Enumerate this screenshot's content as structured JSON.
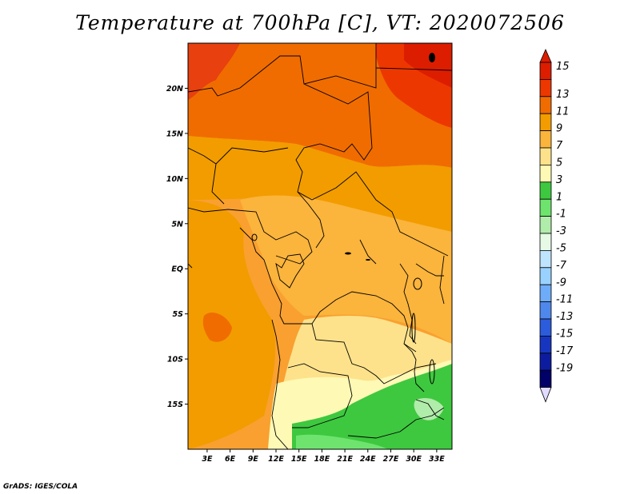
{
  "title": "Temperature at 700hPa [C], VT: 2020072506",
  "credit": "GrADS: IGES/COLA",
  "map": {
    "lon_ticks": [
      "3E",
      "6E",
      "9E",
      "12E",
      "15E",
      "18E",
      "21E",
      "24E",
      "27E",
      "30E",
      "33E"
    ],
    "lat_ticks": [
      "20N",
      "15N",
      "10N",
      "5N",
      "EQ",
      "5S",
      "10S",
      "15S"
    ],
    "lon_range": [
      0.5,
      35
    ],
    "lat_range": [
      -20,
      25
    ],
    "region_levels": [
      {
        "name": "northwest-hot-corner",
        "level": 13
      },
      {
        "name": "north-band",
        "level": 11
      },
      {
        "name": "northeast-hot",
        "level": 13
      },
      {
        "name": "sahel-band",
        "level": 9
      },
      {
        "name": "central-band",
        "level": 7
      },
      {
        "name": "atlantic-west",
        "level": 9
      },
      {
        "name": "southeast-cool",
        "level": 5
      },
      {
        "name": "southern-plateau",
        "level": 3
      }
    ]
  },
  "colorbar": {
    "labels": [
      "15",
      "13",
      "11",
      "9",
      "7",
      "5",
      "3",
      "1",
      "-1",
      "-3",
      "-5",
      "-7",
      "-9",
      "-11",
      "-13",
      "-15",
      "-17",
      "-19"
    ],
    "top_arrow_color": "#dc1d00",
    "bottom_arrow_color": "#e1dcff",
    "colors": [
      "#dc1d00",
      "#ed3700",
      "#f06c00",
      "#f29c00",
      "#fbb43c",
      "#fde28b",
      "#fef9b4",
      "#3ec83f",
      "#6ee46e",
      "#b0ecaa",
      "#e6fae6",
      "#bfe4fe",
      "#99d2ff",
      "#6eacfa",
      "#4f88ec",
      "#2c5cdc",
      "#1736c0",
      "#0d1c9e",
      "#000069"
    ]
  }
}
